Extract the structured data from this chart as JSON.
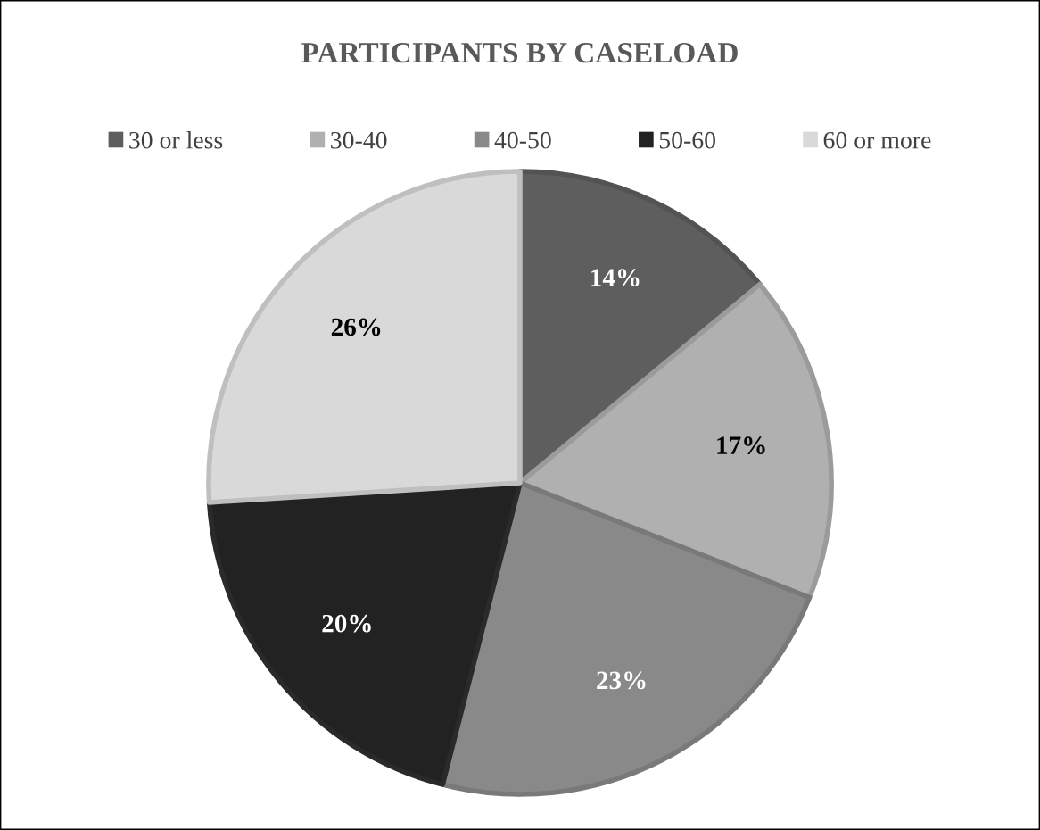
{
  "chart_data": {
    "type": "pie",
    "title": "PARTICIPANTS BY CASELOAD",
    "categories": [
      "30 or less",
      "30-40",
      "40-50",
      "50-60",
      "60 or more"
    ],
    "values": [
      14,
      17,
      23,
      20,
      26
    ],
    "value_labels": [
      "14%",
      "17%",
      "23%",
      "20%",
      "26%"
    ],
    "colors": [
      "#5e5e5e",
      "#b0b0b0",
      "#898989",
      "#222222",
      "#d9d9d9"
    ],
    "legend": "top"
  }
}
